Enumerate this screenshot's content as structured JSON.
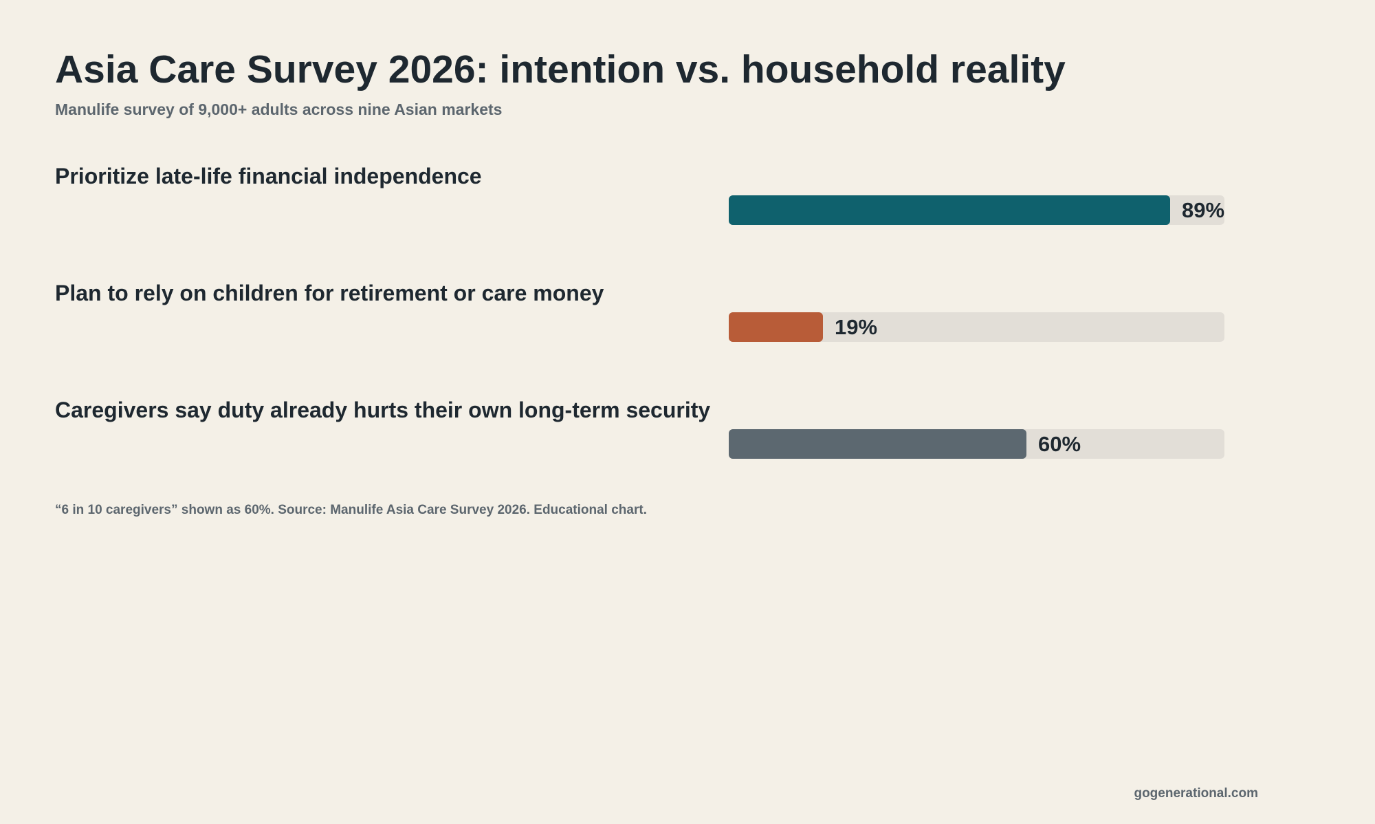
{
  "chart_data": {
    "type": "bar",
    "orientation": "horizontal",
    "title": "Asia Care Survey 2026: intention vs. household reality",
    "subtitle": "Manulife survey of 9,000+ adults across nine Asian markets",
    "xlim": [
      0,
      100
    ],
    "grid": false,
    "categories": [
      "Prioritize late-life financial independence",
      "Plan to rely on children for retirement or care money",
      "Caregivers say duty already hurts their own long-term security"
    ],
    "values": [
      89,
      19,
      60
    ],
    "value_labels": [
      "89%",
      "19%",
      "60%"
    ],
    "colors": [
      "#0f616d",
      "#b85c38",
      "#5c6870"
    ],
    "track_color": "#e2ded7",
    "note": "“6 in 10 caregivers” shown as 60%. Source: Manulife Asia Care Survey 2026. Educational chart."
  },
  "footer": {
    "site": "gogenerational.com"
  }
}
